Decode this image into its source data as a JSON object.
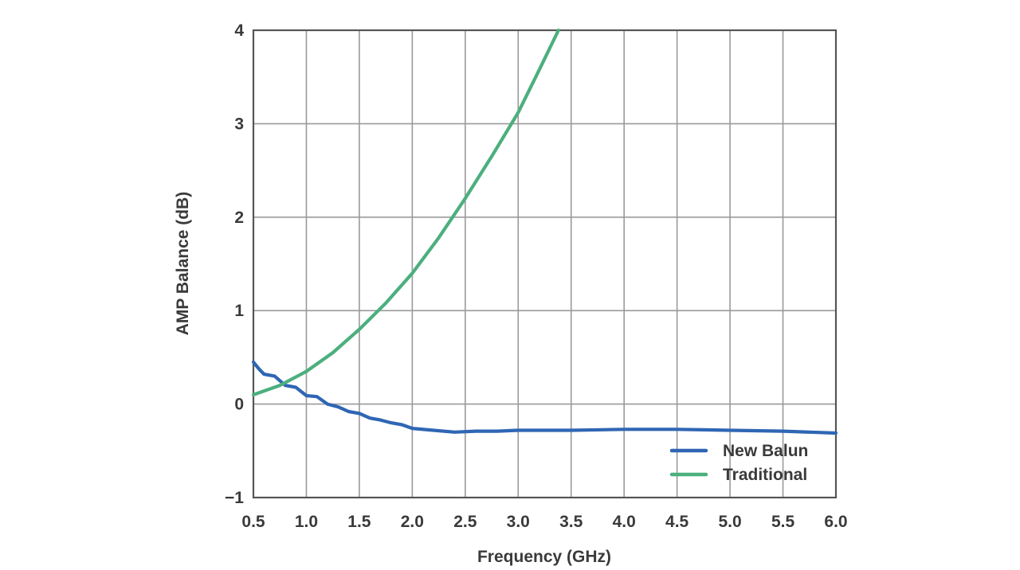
{
  "chart_data": {
    "type": "line",
    "title": "",
    "xlabel": "Frequency (GHz)",
    "ylabel": "AMP Balance (dB)",
    "xlim": [
      0.5,
      6.0
    ],
    "ylim": [
      -1,
      4
    ],
    "x_ticks": [
      0.5,
      1.0,
      1.5,
      2.0,
      2.5,
      3.0,
      3.5,
      4.0,
      4.5,
      5.0,
      5.5,
      6.0
    ],
    "x_tick_labels": [
      "0.5",
      "1.0",
      "1.5",
      "2.0",
      "2.5",
      "3.0",
      "3.5",
      "4.0",
      "4.5",
      "5.0",
      "5.5",
      "6.0"
    ],
    "y_ticks": [
      -1,
      0,
      1,
      2,
      3,
      4
    ],
    "y_tick_labels": [
      "−1",
      "0",
      "1",
      "2",
      "3",
      "4"
    ],
    "grid": true,
    "legend_position": "bottom-right",
    "series": [
      {
        "name": "New Balun",
        "color": "#2f66b4",
        "x": [
          0.5,
          0.55,
          0.6,
          0.7,
          0.8,
          0.9,
          1.0,
          1.1,
          1.2,
          1.3,
          1.4,
          1.5,
          1.6,
          1.7,
          1.8,
          1.9,
          2.0,
          2.2,
          2.4,
          2.6,
          2.8,
          3.0,
          3.5,
          4.0,
          4.5,
          5.0,
          5.5,
          6.0
        ],
        "y": [
          0.45,
          0.38,
          0.32,
          0.3,
          0.2,
          0.18,
          0.09,
          0.08,
          0.0,
          -0.03,
          -0.08,
          -0.1,
          -0.15,
          -0.17,
          -0.2,
          -0.22,
          -0.26,
          -0.28,
          -0.3,
          -0.29,
          -0.29,
          -0.28,
          -0.28,
          -0.27,
          -0.27,
          -0.28,
          -0.29,
          -0.31
        ]
      },
      {
        "name": "Traditional",
        "color": "#4caf7e",
        "x": [
          0.5,
          0.75,
          1.0,
          1.25,
          1.5,
          1.75,
          2.0,
          2.25,
          2.5,
          2.75,
          3.0,
          3.2,
          3.38
        ],
        "y": [
          0.1,
          0.2,
          0.35,
          0.55,
          0.8,
          1.08,
          1.4,
          1.78,
          2.2,
          2.65,
          3.12,
          3.58,
          4.0
        ]
      }
    ]
  }
}
